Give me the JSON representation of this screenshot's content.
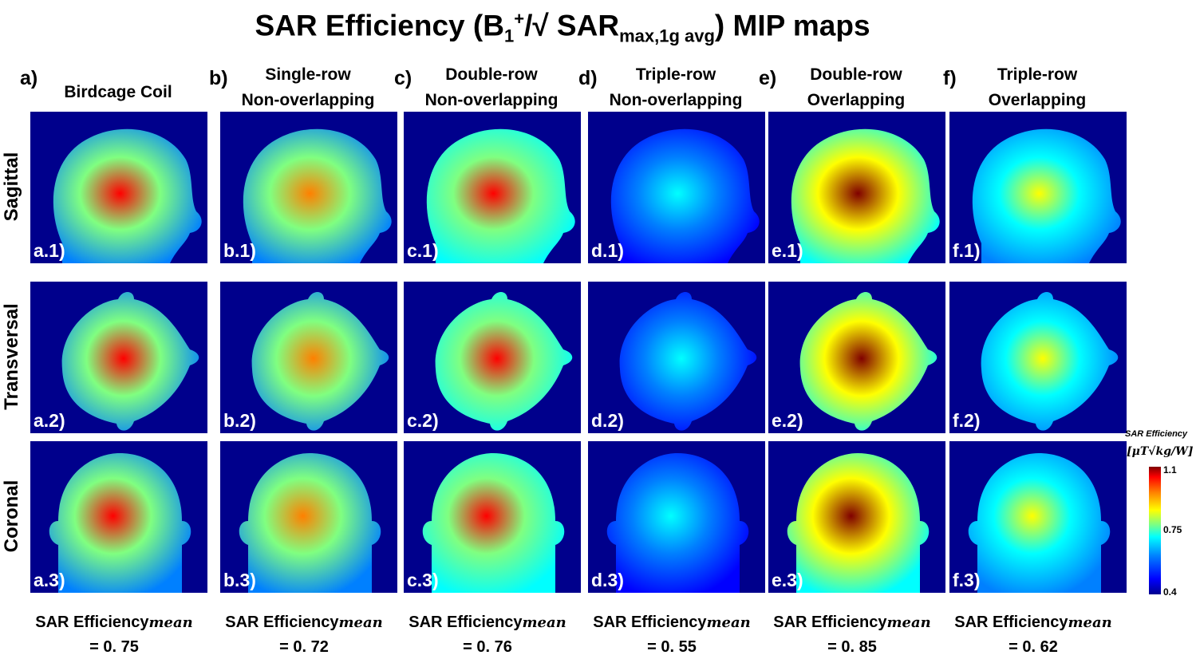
{
  "title": {
    "main": "SAR Efficiency (B",
    "sub1": "1",
    "sup": "+",
    "mid": "/√ SAR",
    "sub2": "max,1g avg",
    "end": ") MIP maps"
  },
  "columns": [
    {
      "letter": "a)",
      "line1": "Birdcage Coil",
      "line2": ""
    },
    {
      "letter": "b)",
      "line1": "Single-row",
      "line2": "Non-overlapping"
    },
    {
      "letter": "c)",
      "line1": "Double-row",
      "line2": "Non-overlapping"
    },
    {
      "letter": "d)",
      "line1": "Triple-row",
      "line2": "Non-overlapping"
    },
    {
      "letter": "e)",
      "line1": "Double-row",
      "line2": "Overlapping"
    },
    {
      "letter": "f)",
      "line1": "Triple-row",
      "line2": "Overlapping"
    }
  ],
  "rows": [
    "Sagittal",
    "Transversal",
    "Coronal"
  ],
  "panel_tags": [
    [
      "a.1)",
      "a.2)",
      "a.3)"
    ],
    [
      "b.1)",
      "b.2)",
      "b.3)"
    ],
    [
      "c.1)",
      "c.2)",
      "c.3)"
    ],
    [
      "d.1)",
      "d.2)",
      "d.3)"
    ],
    [
      "e.1)",
      "e.2)",
      "e.3)"
    ],
    [
      "f.1)",
      "f.2)",
      "f.3)"
    ]
  ],
  "stats": [
    {
      "label": "SAR Efficiency",
      "sub": "mean",
      "value": "= 0. 75"
    },
    {
      "label": "SAR Efficiency",
      "sub": "mean",
      "value": "= 0. 72"
    },
    {
      "label": "SAR Efficiency",
      "sub": "mean",
      "value": "= 0. 76"
    },
    {
      "label": "SAR Efficiency",
      "sub": "mean",
      "value": "= 0. 55"
    },
    {
      "label": "SAR Efficiency",
      "sub": "mean",
      "value": "= 0. 85"
    },
    {
      "label": "SAR Efficiency",
      "sub": "mean",
      "value": "= 0. 62"
    }
  ],
  "colorbar": {
    "title": "SAR Efficiency",
    "unit": "[μT√kg/W]",
    "max": "1.1",
    "mid": "0.75",
    "min": "0.4",
    "colors": [
      "#00008f",
      "#0000ff",
      "#0080ff",
      "#00ffff",
      "#80ff80",
      "#ffff00",
      "#ff8000",
      "#ff0000",
      "#800000"
    ]
  },
  "chart_data": {
    "type": "heatmap",
    "title": "SAR Efficiency (B1+/√ SARmax,1g avg) MIP maps",
    "columns": [
      "Birdcage Coil",
      "Single-row Non-overlapping",
      "Double-row Non-overlapping",
      "Triple-row Non-overlapping",
      "Double-row Overlapping",
      "Triple-row Overlapping"
    ],
    "rows": [
      "Sagittal",
      "Transversal",
      "Coronal"
    ],
    "mean_sar_efficiency": [
      0.75,
      0.72,
      0.76,
      0.55,
      0.85,
      0.62
    ],
    "peak_estimate": [
      1.05,
      0.95,
      1.0,
      0.7,
      1.1,
      0.8
    ],
    "edge_estimate": [
      0.6,
      0.6,
      0.65,
      0.45,
      0.7,
      0.6
    ],
    "colorbar_range": [
      0.4,
      1.1
    ],
    "colorbar_unit": "μT√kg/W"
  }
}
